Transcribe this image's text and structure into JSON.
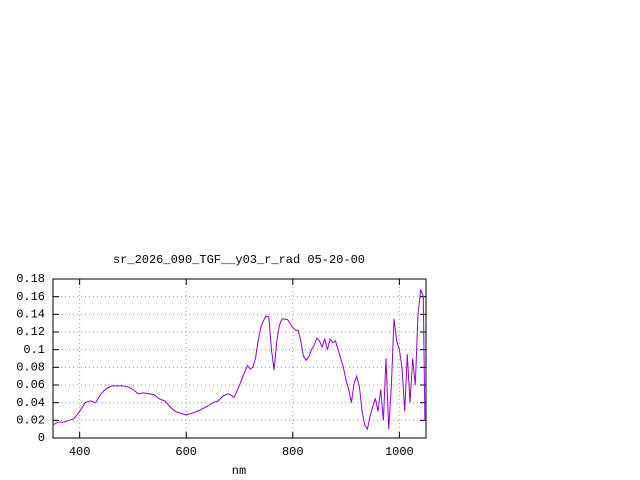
{
  "chart_data": {
    "type": "line",
    "title": "sr_2026_090_TGF__y03_r_rad 05-20-00",
    "x_label": "nm",
    "xlim": [
      350,
      1050
    ],
    "xticks": [
      400,
      600,
      800,
      1000
    ],
    "ylim": [
      0,
      0.18
    ],
    "yticks": [
      0,
      0.02,
      0.04,
      0.06,
      0.08,
      {
        "value": 0.1,
        "label": "0.1"
      },
      0.12,
      0.14,
      0.16,
      0.18
    ],
    "grid": true,
    "series": [
      {
        "color": "#9400d3",
        "x": [
          350,
          360,
          370,
          380,
          390,
          400,
          410,
          420,
          430,
          440,
          450,
          460,
          470,
          480,
          490,
          500,
          510,
          520,
          530,
          540,
          550,
          560,
          570,
          580,
          590,
          600,
          610,
          620,
          630,
          640,
          650,
          660,
          670,
          680,
          690,
          700,
          710,
          715,
          720,
          725,
          730,
          735,
          740,
          745,
          750,
          755,
          760,
          765,
          770,
          775,
          780,
          790,
          800,
          805,
          810,
          815,
          820,
          825,
          830,
          835,
          840,
          845,
          850,
          855,
          860,
          865,
          870,
          875,
          880,
          885,
          890,
          895,
          900,
          905,
          910,
          915,
          920,
          925,
          930,
          935,
          940,
          945,
          950,
          955,
          960,
          965,
          970,
          975,
          980,
          985,
          990,
          995,
          1000,
          1005,
          1010,
          1015,
          1020,
          1025,
          1030,
          1035,
          1040,
          1045,
          1048
        ],
        "values": [
          0.015,
          0.018,
          0.018,
          0.02,
          0.022,
          0.03,
          0.04,
          0.042,
          0.04,
          0.05,
          0.056,
          0.059,
          0.059,
          0.059,
          0.058,
          0.055,
          0.05,
          0.051,
          0.05,
          0.049,
          0.044,
          0.042,
          0.035,
          0.03,
          0.028,
          0.026,
          0.028,
          0.03,
          0.033,
          0.036,
          0.04,
          0.042,
          0.048,
          0.05,
          0.046,
          0.06,
          0.075,
          0.082,
          0.078,
          0.08,
          0.09,
          0.11,
          0.125,
          0.133,
          0.138,
          0.137,
          0.1,
          0.077,
          0.11,
          0.128,
          0.135,
          0.134,
          0.125,
          0.122,
          0.122,
          0.11,
          0.093,
          0.088,
          0.092,
          0.1,
          0.105,
          0.113,
          0.11,
          0.103,
          0.112,
          0.1,
          0.112,
          0.108,
          0.11,
          0.1,
          0.09,
          0.08,
          0.065,
          0.055,
          0.04,
          0.062,
          0.07,
          0.058,
          0.03,
          0.015,
          0.01,
          0.025,
          0.035,
          0.045,
          0.03,
          0.055,
          0.02,
          0.09,
          0.01,
          0.06,
          0.135,
          0.11,
          0.1,
          0.08,
          0.03,
          0.095,
          0.04,
          0.09,
          0.06,
          0.14,
          0.168,
          0.16,
          0.02
        ]
      }
    ]
  }
}
